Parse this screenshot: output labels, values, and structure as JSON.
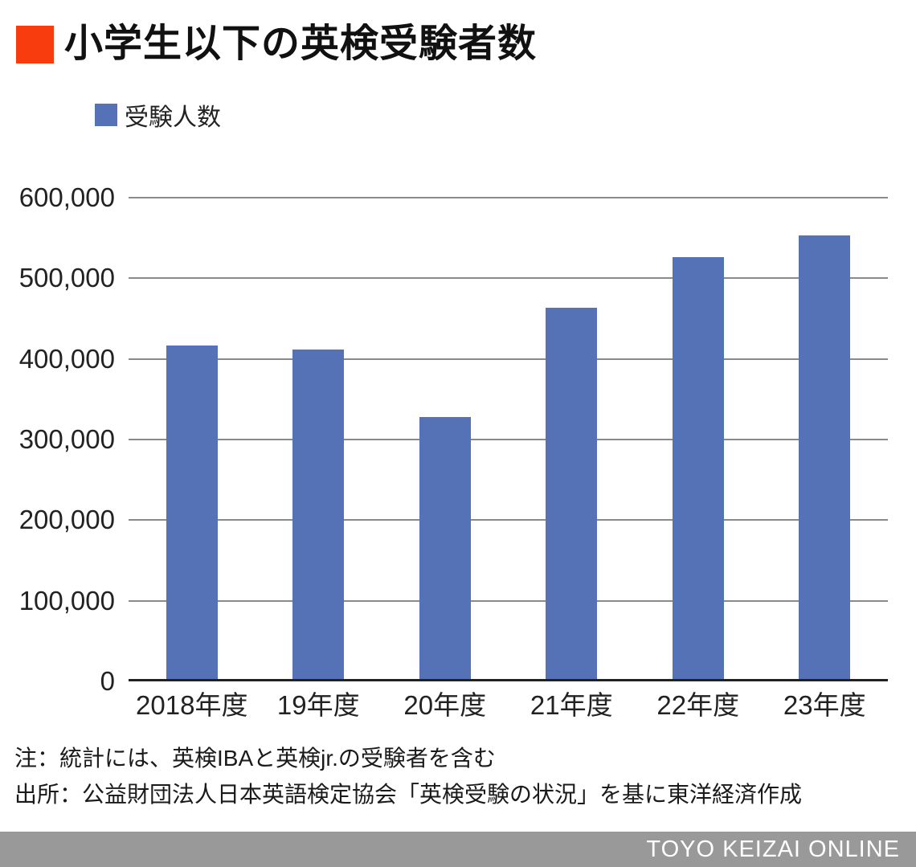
{
  "title": "小学生以下の英検受験者数",
  "legend": {
    "label": "受験人数"
  },
  "notes": [
    "注：統計には、英検IBAと英検jr.の受験者を含む",
    "出所：公益財団法人日本英語検定協会「英検受験の状況」を基に東洋経済作成"
  ],
  "footer": {
    "brand": "TOYO KEIZAI ONLINE"
  },
  "colors": {
    "accent_red": "#f93c0d",
    "bar_blue": "#5672b6",
    "gridline_gray": "#8a8a8a",
    "axis_black": "#222222",
    "footer_gray": "#999999"
  },
  "chart_data": {
    "type": "bar",
    "title": "小学生以下の英検受験者数",
    "series_name": "受験人数",
    "categories": [
      "2018年度",
      "19年度",
      "20年度",
      "21年度",
      "22年度",
      "23年度"
    ],
    "values": [
      414000,
      409000,
      325000,
      460000,
      523000,
      550000
    ],
    "xlabel": "",
    "ylabel": "",
    "ylim": [
      0,
      600000
    ],
    "ytick_interval": 100000,
    "ytick_labels": [
      "0",
      "100,000",
      "200,000",
      "300,000",
      "400,000",
      "500,000",
      "600,000"
    ],
    "grid": true,
    "legend_position": "top-left",
    "bar_color": "#5672b6"
  }
}
